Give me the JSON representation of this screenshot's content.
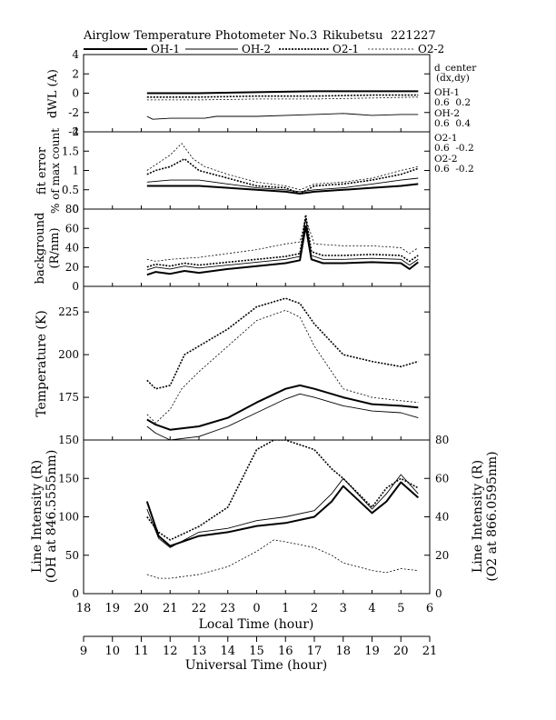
{
  "header": {
    "title": "Airglow Temperature Photometer No.3",
    "station": "Rikubetsu",
    "date": "221227"
  },
  "legend": [
    {
      "name": "OH-1",
      "style": "solid-thick"
    },
    {
      "name": "OH-2",
      "style": "solid-thin"
    },
    {
      "name": "O2-1",
      "style": "dotted-thick"
    },
    {
      "name": "O2-2",
      "style": "dotted-thin"
    }
  ],
  "d_center": {
    "title": "d_center",
    "subtitle": "(dx,dy)",
    "entries": [
      {
        "name": "OH-1",
        "value": "0.6  0.2"
      },
      {
        "name": "OH-2",
        "value": "0.6  0.4"
      },
      {
        "name": "O2-1",
        "value": "0.6  -0.2"
      },
      {
        "name": "O2-2",
        "value": "0.6  -0.2"
      }
    ]
  },
  "x_axes": {
    "local": {
      "label": "Local Time (hour)",
      "ticks": [
        "18",
        "19",
        "20",
        "21",
        "22",
        "23",
        "0",
        "1",
        "2",
        "3",
        "4",
        "5",
        "6"
      ]
    },
    "universal": {
      "label": "Universal Time (hour)",
      "ticks": [
        "9",
        "10",
        "11",
        "12",
        "13",
        "14",
        "15",
        "16",
        "17",
        "18",
        "19",
        "20",
        "21"
      ]
    }
  },
  "chart_data": [
    {
      "type": "line",
      "panel": "dwl",
      "ylabel": "dWL (A)",
      "ylim": [
        -4,
        4
      ],
      "yticks": [
        "-4",
        "-2",
        "0",
        "2",
        "4"
      ],
      "x_unit": "Universal Time (hour)",
      "series": [
        {
          "name": "OH-1",
          "x": [
            11.2,
            13,
            15,
            17,
            19,
            20.6
          ],
          "y": [
            0.0,
            0.0,
            0.1,
            0.2,
            0.2,
            0.2
          ]
        },
        {
          "name": "OH-2",
          "x": [
            11.2,
            11.4,
            12,
            13.2,
            13.6,
            15,
            17,
            18,
            19,
            20,
            20.6
          ],
          "y": [
            -2.4,
            -2.7,
            -2.6,
            -2.6,
            -2.4,
            -2.4,
            -2.2,
            -2.1,
            -2.3,
            -2.2,
            -2.2
          ]
        },
        {
          "name": "O2-1",
          "x": [
            11.2,
            13,
            15,
            17,
            19,
            20.6
          ],
          "y": [
            -0.4,
            -0.4,
            -0.3,
            -0.3,
            -0.2,
            -0.2
          ]
        },
        {
          "name": "O2-2",
          "x": [
            11.2,
            13,
            15,
            17,
            19,
            20.6
          ],
          "y": [
            -0.7,
            -0.7,
            -0.6,
            -0.6,
            -0.5,
            -0.4
          ]
        }
      ]
    },
    {
      "type": "line",
      "panel": "fit_error",
      "ylabel": "fit error",
      "ylabel2": "% of max count",
      "ylim": [
        0,
        2
      ],
      "yticks": [
        "0",
        "0.5",
        "1",
        "1.5",
        "2"
      ],
      "x_unit": "Universal Time (hour)",
      "series": [
        {
          "name": "OH-1",
          "x": [
            11.2,
            12,
            13,
            14,
            15,
            16,
            16.5,
            17,
            18,
            19,
            20,
            20.6
          ],
          "y": [
            0.6,
            0.6,
            0.6,
            0.55,
            0.5,
            0.45,
            0.4,
            0.45,
            0.5,
            0.55,
            0.6,
            0.65
          ]
        },
        {
          "name": "OH-2",
          "x": [
            11.2,
            12,
            13,
            14,
            15,
            16,
            16.5,
            17,
            18,
            19,
            20,
            20.6
          ],
          "y": [
            0.7,
            0.75,
            0.75,
            0.65,
            0.55,
            0.5,
            0.45,
            0.5,
            0.55,
            0.65,
            0.75,
            0.8
          ]
        },
        {
          "name": "O2-1",
          "x": [
            11.2,
            11.5,
            12,
            12.5,
            13,
            14,
            15,
            16,
            16.5,
            17,
            18,
            19,
            20,
            20.6
          ],
          "y": [
            0.9,
            1.0,
            1.1,
            1.3,
            1.0,
            0.8,
            0.6,
            0.55,
            0.4,
            0.6,
            0.65,
            0.75,
            0.9,
            1.05
          ]
        },
        {
          "name": "O2-2",
          "x": [
            11.2,
            11.6,
            12,
            12.4,
            12.8,
            13.2,
            14,
            15,
            16,
            16.5,
            17,
            18,
            19,
            20,
            20.6
          ],
          "y": [
            1.0,
            1.2,
            1.4,
            1.7,
            1.3,
            1.1,
            0.9,
            0.7,
            0.6,
            0.5,
            0.65,
            0.7,
            0.8,
            1.0,
            1.1
          ]
        }
      ]
    },
    {
      "type": "line",
      "panel": "background",
      "ylabel": "background",
      "ylabel2": "(R/nm)",
      "ylim": [
        0,
        80
      ],
      "yticks": [
        "0",
        "20",
        "40",
        "60",
        "80"
      ],
      "x_unit": "Universal Time (hour)",
      "series": [
        {
          "name": "OH-1",
          "x": [
            11.2,
            11.5,
            12,
            12.5,
            13,
            14,
            15,
            16,
            16.5,
            16.7,
            16.9,
            17.3,
            18,
            19,
            20,
            20.3,
            20.6
          ],
          "y": [
            12,
            15,
            13,
            16,
            14,
            18,
            21,
            24,
            27,
            62,
            28,
            24,
            24,
            25,
            24,
            18,
            25
          ]
        },
        {
          "name": "OH-2",
          "x": [
            11.2,
            11.5,
            12,
            12.5,
            13,
            14,
            15,
            16,
            16.5,
            16.7,
            16.9,
            17.3,
            18,
            19,
            20,
            20.3,
            20.6
          ],
          "y": [
            17,
            20,
            18,
            21,
            19,
            22,
            25,
            28,
            31,
            70,
            32,
            28,
            28,
            29,
            28,
            22,
            28
          ]
        },
        {
          "name": "O2-1",
          "x": [
            11.2,
            11.5,
            12,
            12.5,
            13,
            14,
            15,
            16,
            16.5,
            16.7,
            16.9,
            17.3,
            18,
            19,
            20,
            20.3,
            20.6
          ],
          "y": [
            20,
            23,
            21,
            24,
            22,
            25,
            28,
            31,
            34,
            74,
            36,
            32,
            32,
            33,
            32,
            26,
            32
          ]
        },
        {
          "name": "O2-2",
          "x": [
            11.2,
            11.5,
            12,
            13,
            14,
            15,
            16,
            16.5,
            16.7,
            17,
            18,
            19,
            20,
            20.3,
            20.6
          ],
          "y": [
            28,
            26,
            28,
            30,
            34,
            38,
            44,
            46,
            70,
            44,
            42,
            42,
            40,
            34,
            40
          ]
        }
      ]
    },
    {
      "type": "line",
      "panel": "temperature",
      "ylabel": "Temperature (K)",
      "ylim": [
        150,
        240
      ],
      "yticks": [
        "150",
        "175",
        "200",
        "225"
      ],
      "x_unit": "Universal Time (hour)",
      "series": [
        {
          "name": "OH-1",
          "x": [
            11.2,
            11.5,
            12,
            13,
            14,
            15,
            16,
            16.5,
            17,
            18,
            19,
            20,
            20.6
          ],
          "y": [
            162,
            159,
            156,
            158,
            163,
            172,
            180,
            182,
            180,
            175,
            171,
            170,
            169
          ]
        },
        {
          "name": "OH-2",
          "x": [
            11.2,
            11.5,
            12,
            13,
            14,
            15,
            16,
            16.5,
            17,
            18,
            19,
            20,
            20.6
          ],
          "y": [
            158,
            154,
            150,
            152,
            158,
            166,
            174,
            177,
            175,
            170,
            167,
            166,
            163
          ]
        },
        {
          "name": "O2-1",
          "x": [
            11.2,
            11.5,
            12,
            12.5,
            13,
            14,
            15,
            16,
            16.5,
            17,
            18,
            19,
            20,
            20.6
          ],
          "y": [
            185,
            180,
            182,
            200,
            205,
            215,
            228,
            233,
            230,
            218,
            200,
            196,
            193,
            196
          ]
        },
        {
          "name": "O2-2",
          "x": [
            11.2,
            11.5,
            12,
            12.4,
            13,
            14,
            15,
            16,
            16.5,
            17,
            18,
            19,
            20,
            20.6
          ],
          "y": [
            165,
            160,
            168,
            180,
            190,
            205,
            220,
            226,
            222,
            205,
            180,
            175,
            173,
            172
          ]
        }
      ]
    },
    {
      "type": "line",
      "panel": "intensity",
      "ylabel": "Line Intensity (R)",
      "ylabel2": "(OH at 846.5555nm)",
      "ylabel_right": "Line Intensity (R)",
      "ylabel_right2": "(O2 at 866.0595nm)",
      "ylim": [
        0,
        200
      ],
      "yticks": [
        "0",
        "50",
        "100",
        "150"
      ],
      "ylim_right": [
        0,
        80
      ],
      "yticks_right": [
        "0",
        "20",
        "40",
        "60",
        "80"
      ],
      "x_unit": "Universal Time (hour)",
      "series": [
        {
          "name": "OH-1",
          "axis": "left",
          "x": [
            11.2,
            11.6,
            12,
            13,
            14,
            15,
            16,
            17,
            17.6,
            18,
            19,
            19.5,
            20,
            20.6
          ],
          "y": [
            120,
            75,
            62,
            75,
            80,
            88,
            92,
            100,
            120,
            140,
            105,
            120,
            145,
            125
          ]
        },
        {
          "name": "OH-2",
          "axis": "left",
          "x": [
            11.2,
            11.6,
            12,
            13,
            14,
            15,
            16,
            17,
            17.6,
            18,
            19,
            19.5,
            20,
            20.6
          ],
          "y": [
            110,
            72,
            60,
            80,
            85,
            95,
            100,
            108,
            130,
            150,
            110,
            130,
            155,
            130
          ]
        },
        {
          "name": "O2-1",
          "axis": "right",
          "x": [
            11.2,
            11.6,
            12,
            13,
            14,
            15,
            15.6,
            16,
            17,
            17.6,
            18,
            19,
            19.5,
            20,
            20.6
          ],
          "y": [
            40,
            32,
            28,
            35,
            45,
            75,
            80,
            80,
            75,
            65,
            60,
            45,
            55,
            60,
            55
          ]
        },
        {
          "name": "O2-2",
          "axis": "right",
          "x": [
            11.2,
            11.6,
            12,
            13,
            14,
            15,
            15.6,
            16,
            17,
            17.6,
            18,
            19,
            19.5,
            20,
            20.6
          ],
          "y": [
            10,
            8,
            8,
            10,
            14,
            22,
            28,
            27,
            24,
            20,
            16,
            12,
            11,
            13,
            12
          ]
        }
      ]
    }
  ]
}
